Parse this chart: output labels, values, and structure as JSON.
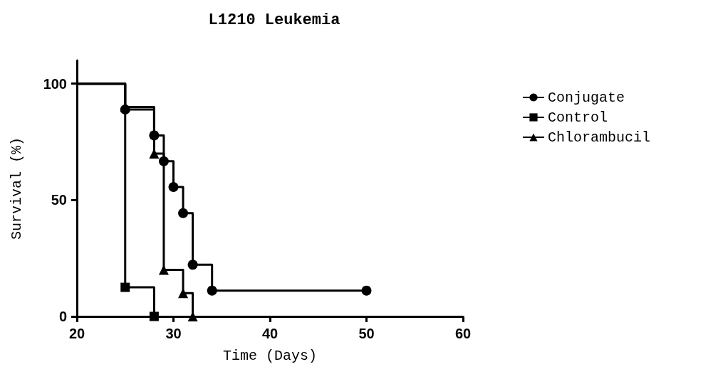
{
  "chart_data": {
    "type": "step",
    "title": "L1210 Leukemia",
    "xlabel": "Time (Days)",
    "ylabel": "Survival (%)",
    "xlim": [
      20,
      60
    ],
    "xticks": [
      20,
      30,
      40,
      50,
      60
    ],
    "ylim": [
      0,
      110
    ],
    "yticks": [
      0,
      50,
      100
    ],
    "grid": false,
    "legend": "top right",
    "series": [
      {
        "name": "Conjugate",
        "color": "#000000",
        "marker": "circle",
        "x": [
          20,
          25,
          28,
          29,
          30,
          31,
          32,
          34,
          50
        ],
        "values": [
          100,
          88.9,
          77.8,
          66.7,
          55.6,
          44.4,
          22.2,
          11.1,
          11.1
        ]
      },
      {
        "name": "Control",
        "color": "#000000",
        "marker": "square",
        "x": [
          20,
          25,
          28
        ],
        "values": [
          100,
          12.5,
          0
        ]
      },
      {
        "name": "Chlorambucil",
        "color": "#000000",
        "marker": "triangle",
        "x": [
          20,
          25,
          28,
          29,
          31,
          32
        ],
        "values": [
          100,
          90,
          70,
          20,
          10,
          0
        ]
      }
    ]
  }
}
